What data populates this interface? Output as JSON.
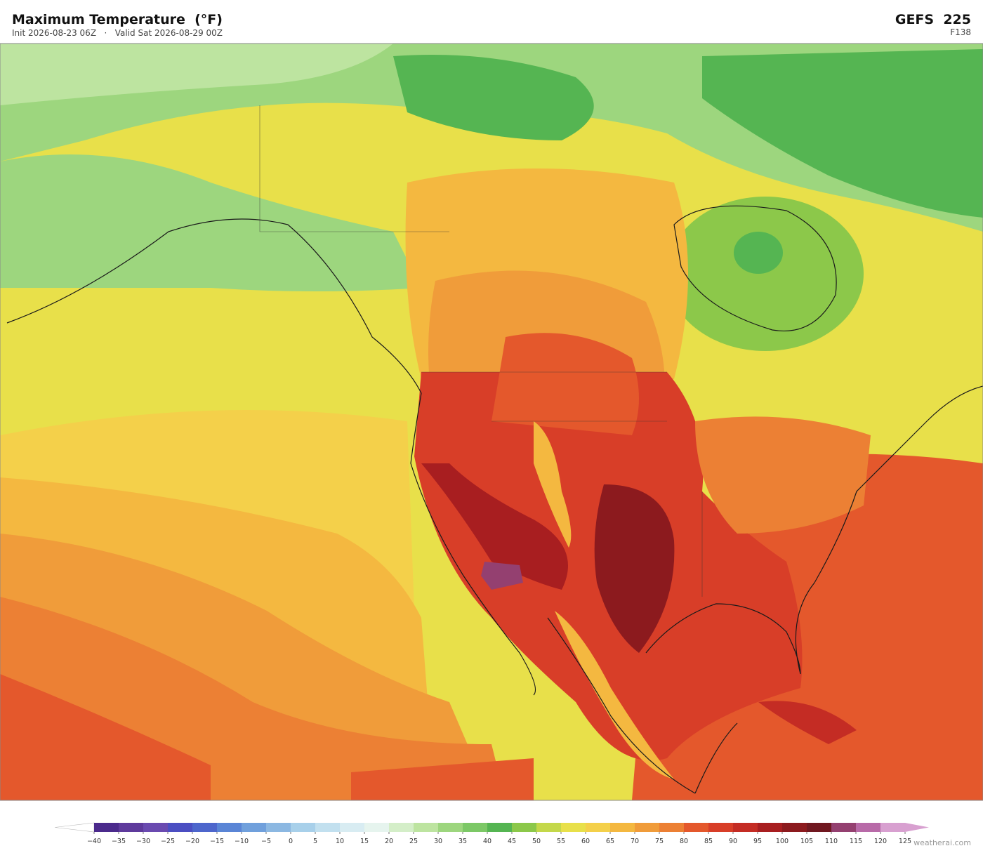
{
  "header": {
    "title": "Maximum Temperature  (°F)",
    "subtitle": "Init 2026-08-23 06Z   ·   Valid Sat 2026-08-29 00Z",
    "model": "GEFS  225",
    "forecast_hour": "F138"
  },
  "colorbar": {
    "ticks": [
      {
        "value": -40,
        "label": "−40"
      },
      {
        "value": -35,
        "label": "−35"
      },
      {
        "value": -30,
        "label": "−30"
      },
      {
        "value": -25,
        "label": "−25"
      },
      {
        "value": -20,
        "label": "−20"
      },
      {
        "value": -15,
        "label": "−15"
      },
      {
        "value": -10,
        "label": "−10"
      },
      {
        "value": -5,
        "label": "−5"
      },
      0,
      5,
      10,
      15,
      20,
      25,
      30,
      35,
      40,
      45,
      50,
      55,
      60,
      65,
      70,
      75,
      80,
      85,
      90,
      95,
      100,
      105,
      110,
      115,
      120,
      125
    ],
    "colors": [
      "#4b2a8c",
      "#5e3a9c",
      "#6a4ab0",
      "#4b4ec2",
      "#4d66cc",
      "#5a85d6",
      "#70a0dc",
      "#8cb8e2",
      "#a8d0ea",
      "#c2e0ef",
      "#d8ecf2",
      "#e6f4ee",
      "#d4eec8",
      "#bde4a0",
      "#9dd67e",
      "#7cc866",
      "#55b552",
      "#8cc84a",
      "#c4d84a",
      "#e8e04a",
      "#f4d04a",
      "#f4b840",
      "#f09c3a",
      "#ec8034",
      "#e4582c",
      "#d83e28",
      "#c42c24",
      "#a81e20",
      "#8c1a1e",
      "#701820",
      "#944070",
      "#b86aa8",
      "#d8a0d0"
    ],
    "under_color": "#ffffff",
    "over_color": "#d8a0d0"
  },
  "watermark": "weatherai.com"
}
